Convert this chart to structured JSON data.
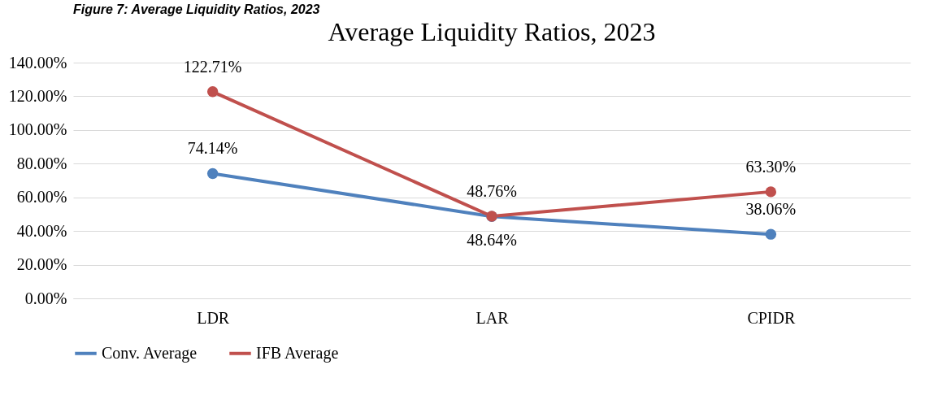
{
  "chart_data": {
    "type": "line",
    "title": "Average Liquidity Ratios, 2023",
    "annotations": [
      "Figure 7: Average Liquidity Ratios, 2023"
    ],
    "categories": [
      "LDR",
      "LAR",
      "CPIDR"
    ],
    "series": [
      {
        "name": "Conv. Average",
        "color": "#4f81bd",
        "values": [
          74.14,
          48.64,
          38.06
        ],
        "value_labels": [
          "74.14%",
          "48.64%",
          "38.06%"
        ]
      },
      {
        "name": "IFB Average",
        "color": "#c0504d",
        "values": [
          122.71,
          48.76,
          63.3
        ],
        "value_labels": [
          "122.71%",
          "48.76%",
          "63.30%"
        ]
      }
    ],
    "ylim": [
      0,
      140
    ],
    "yticks": [
      {
        "value": 0,
        "label": "0.00%"
      },
      {
        "value": 20,
        "label": "20.00%"
      },
      {
        "value": 40,
        "label": "40.00%"
      },
      {
        "value": 60,
        "label": "60.00%"
      },
      {
        "value": 80,
        "label": "80.00%"
      },
      {
        "value": 100,
        "label": "100.00%"
      },
      {
        "value": 120,
        "label": "120.00%"
      },
      {
        "value": 140,
        "label": "140.00%"
      }
    ],
    "grid": "y",
    "legend": "bottom",
    "marker": "circle",
    "line_style": "solid"
  }
}
